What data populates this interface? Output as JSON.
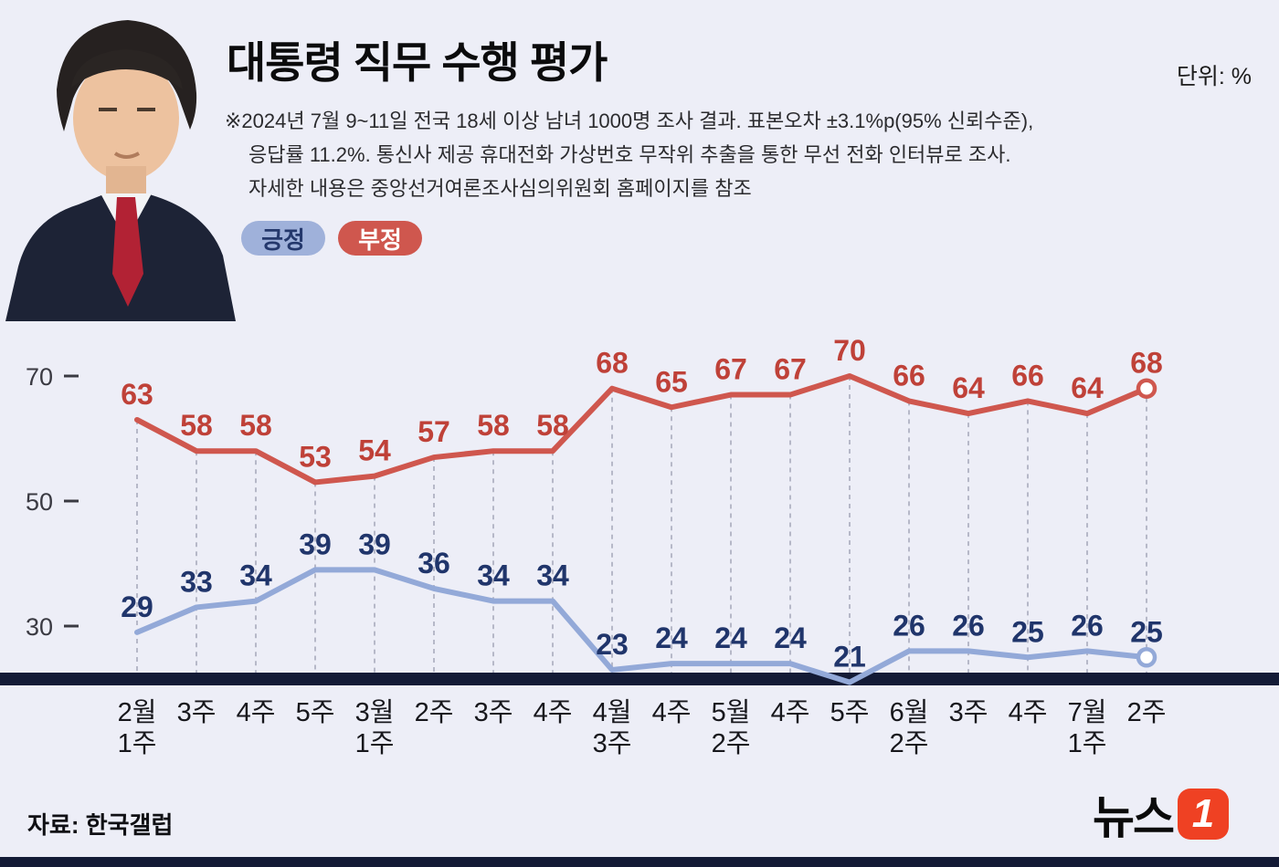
{
  "title": "대통령 직무 수행 평가",
  "unit_label": "단위: %",
  "footnote_lines": [
    "※2024년 7월 9~11일 전국 18세 이상 남녀 1000명 조사 결과. 표본오차 ±3.1%p(95% 신뢰수준),",
    "응답률 11.2%. 통신사 제공 휴대전화 가상번호 무작위 추출을 통한 무선 전화 인터뷰로 조사.",
    "자세한 내용은 중앙선거여론조사심의위원회 홈페이지를 참조"
  ],
  "legend": [
    {
      "label": "긍정",
      "bg": "#9fb1da",
      "fg": "#24386c"
    },
    {
      "label": "부정",
      "bg": "#cf574e",
      "fg": "#ffffff"
    }
  ],
  "source": "자료: 한국갤럽",
  "logo": {
    "text": "뉴스",
    "badge": "1",
    "badge_color": "#ef4123"
  },
  "chart_data": {
    "type": "line",
    "unit": "%",
    "title": "대통령 직무 수행 평가",
    "categories": [
      [
        "2월",
        "1주"
      ],
      [
        "3주"
      ],
      [
        "4주"
      ],
      [
        "5주"
      ],
      [
        "3월",
        "1주"
      ],
      [
        "2주"
      ],
      [
        "3주"
      ],
      [
        "4주"
      ],
      [
        "4월",
        "3주"
      ],
      [
        "4주"
      ],
      [
        "5월",
        "2주"
      ],
      [
        "4주"
      ],
      [
        "5주"
      ],
      [
        "6월",
        "2주"
      ],
      [
        "3주"
      ],
      [
        "4주"
      ],
      [
        "7월",
        "1주"
      ],
      [
        "2주"
      ]
    ],
    "series": [
      {
        "name": "부정",
        "line_color": "#cf574e",
        "label_color": "#bf4138",
        "values": [
          63,
          58,
          58,
          53,
          54,
          57,
          58,
          58,
          68,
          65,
          67,
          67,
          70,
          66,
          64,
          66,
          64,
          68
        ]
      },
      {
        "name": "긍정",
        "line_color": "#93a9d8",
        "label_color": "#20356b",
        "values": [
          29,
          33,
          34,
          39,
          39,
          36,
          34,
          34,
          23,
          24,
          24,
          24,
          21,
          26,
          26,
          25,
          26,
          25
        ]
      }
    ],
    "y_ticks": [
      70,
      50,
      30
    ],
    "ylim": [
      18,
      75
    ],
    "grid": "dashed-vertical-droplines",
    "legend_position": "top-left",
    "axis_bar_color": "#141b36",
    "grid_color": "#a8abbc"
  }
}
